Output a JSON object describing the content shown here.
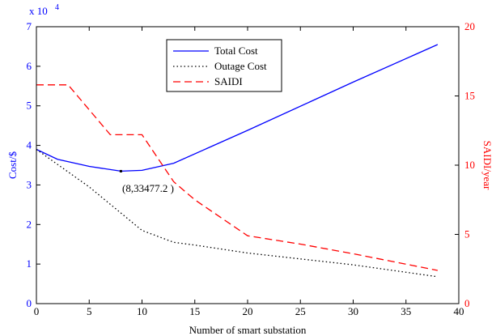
{
  "chart_data": {
    "type": "line",
    "xlabel": "Number of smart substation",
    "ylabel_left": "Cost/$",
    "ylabel_right": "SAIDI/year",
    "xlim": [
      0,
      40
    ],
    "ylim_left": [
      0,
      7
    ],
    "ylim_right": [
      0,
      20
    ],
    "left_exponent_label": "x 10",
    "left_exponent_power": "4",
    "x_ticks": [
      "0",
      "5",
      "10",
      "15",
      "20",
      "25",
      "30",
      "35",
      "40"
    ],
    "y_left_ticks": [
      "0",
      "1",
      "2",
      "3",
      "4",
      "5",
      "6",
      "7"
    ],
    "y_right_ticks": [
      "0",
      "5",
      "10",
      "15",
      "20"
    ],
    "grid": false,
    "legend_position": "top-center",
    "colors": {
      "left_axis": "#0000ff",
      "right_axis": "#ff0000",
      "frame": "#000000"
    },
    "series": [
      {
        "name": "Total Cost",
        "axis": "left",
        "style": "solid",
        "color": "#0000ff",
        "x": [
          0,
          2,
          5,
          8,
          10,
          13,
          20,
          30,
          38
        ],
        "y": [
          3.9,
          3.65,
          3.47,
          3.3477,
          3.37,
          3.55,
          4.38,
          5.6,
          6.55
        ]
      },
      {
        "name": "Outage Cost",
        "axis": "left",
        "style": "dotted",
        "color": "#000000",
        "x": [
          0,
          5,
          10,
          13,
          15,
          20,
          30,
          38
        ],
        "y": [
          3.9,
          2.95,
          1.85,
          1.55,
          1.48,
          1.28,
          0.98,
          0.68
        ]
      },
      {
        "name": "SAIDI",
        "axis": "right",
        "style": "dashed",
        "color": "#ff0000",
        "x": [
          0,
          3,
          7,
          10,
          13,
          15,
          20,
          25,
          30,
          38
        ],
        "y": [
          15.8,
          15.8,
          12.2,
          12.2,
          8.8,
          7.5,
          4.9,
          4.3,
          3.6,
          2.4
        ]
      }
    ],
    "annotation": {
      "text": "(8,33477.2 )",
      "x": 8,
      "y": 3.34772
    }
  }
}
